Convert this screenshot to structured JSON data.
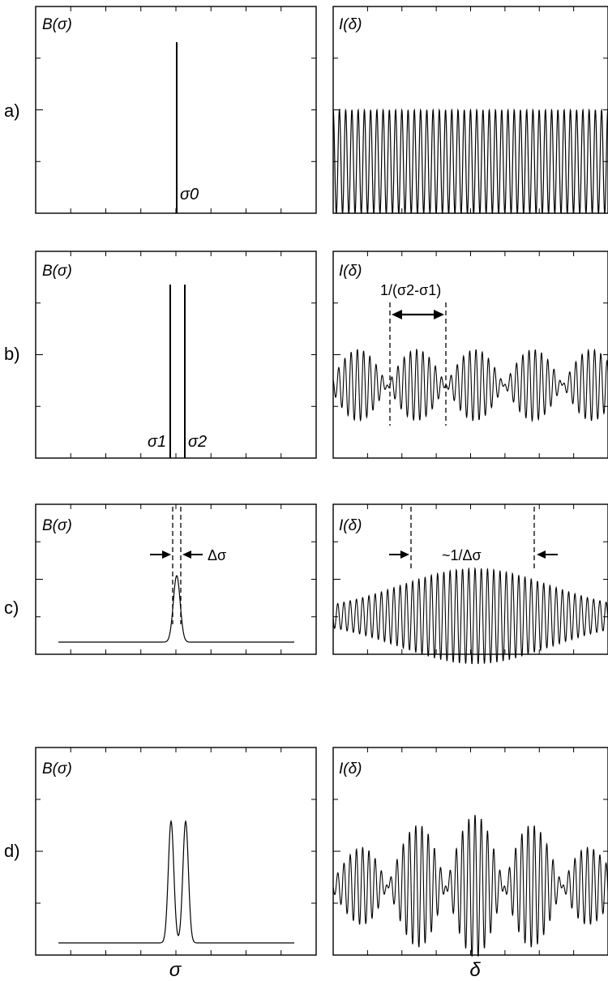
{
  "row_labels": [
    "a)",
    "b)",
    "c)",
    "d)"
  ],
  "left_axis_title": "B(σ)",
  "right_axis_title": "I(δ)",
  "bottom_left_label": "σ",
  "bottom_right_label": "δ",
  "panel_a": {
    "peak_label": "σ0"
  },
  "panel_b": {
    "peak_label_1": "σ1",
    "peak_label_2": "σ2",
    "period_label": "1/(σ2-σ1)"
  },
  "panel_c": {
    "width_label": "Δσ",
    "coherence_label": "~1/Δσ"
  },
  "colors": {
    "line": "#000000",
    "background": "#ffffff"
  }
}
